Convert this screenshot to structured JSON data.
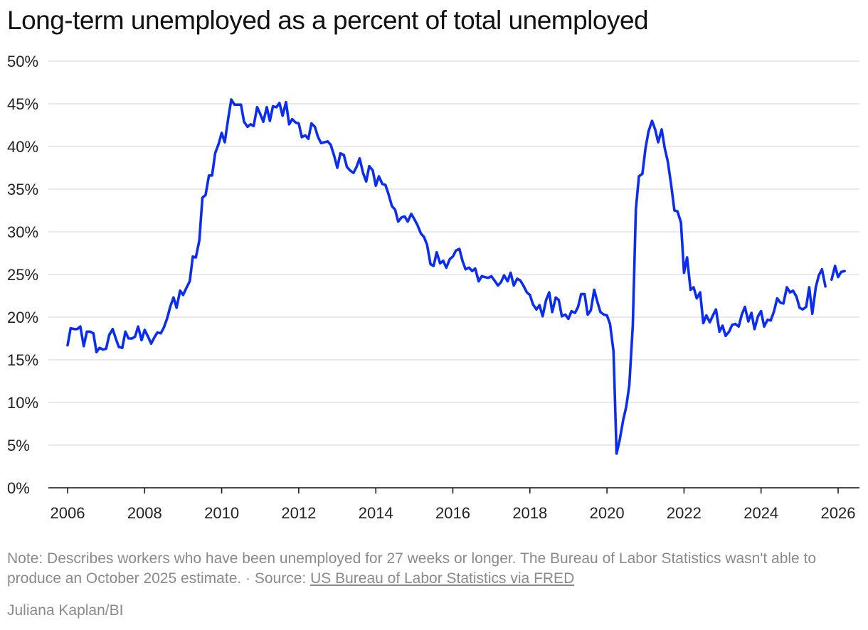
{
  "title": "Long-term unemployed as a percent of total unemployed",
  "note": {
    "text": "Note: Describes workers who have been unemployed for 27 weeks or longer. The Bureau of Labor Statistics wasn't able to produce an October 2025 estimate. · Source: ",
    "source_link": "US Bureau of Labor Statistics via FRED"
  },
  "credit": "Juliana Kaplan/BI",
  "colors": {
    "line": "#0b2df2",
    "grid": "#dddddd",
    "axis": "#111111",
    "muted": "#8a8a8a"
  },
  "chart_data": {
    "type": "line",
    "title": "Long-term unemployed as a percent of total unemployed",
    "xlabel": "",
    "ylabel": "",
    "ylim": [
      0,
      50
    ],
    "xlim": [
      2006,
      2026.3
    ],
    "grid": true,
    "y_ticks": [
      0,
      5,
      10,
      15,
      20,
      25,
      30,
      35,
      40,
      45,
      50
    ],
    "y_tick_labels": [
      "0%",
      "5%",
      "10%",
      "15%",
      "20%",
      "25%",
      "30%",
      "35%",
      "40%",
      "45%",
      "50%"
    ],
    "x_ticks": [
      2006,
      2008,
      2010,
      2012,
      2014,
      2016,
      2018,
      2020,
      2022,
      2024,
      2026
    ],
    "x_tick_labels": [
      "2006",
      "2008",
      "2010",
      "2012",
      "2014",
      "2016",
      "2018",
      "2020",
      "2022",
      "2024",
      "2026"
    ],
    "series": [
      {
        "values": [
          [
            2006.0,
            16.7
          ],
          [
            2006.08,
            18.7
          ],
          [
            2006.17,
            18.6
          ],
          [
            2006.25,
            18.6
          ],
          [
            2006.33,
            18.9
          ],
          [
            2006.42,
            16.6
          ],
          [
            2006.5,
            18.3
          ],
          [
            2006.58,
            18.3
          ],
          [
            2006.67,
            18.1
          ],
          [
            2006.75,
            15.9
          ],
          [
            2006.83,
            16.4
          ],
          [
            2006.92,
            16.2
          ],
          [
            2007.0,
            16.3
          ],
          [
            2007.08,
            17.9
          ],
          [
            2007.17,
            18.6
          ],
          [
            2007.25,
            17.5
          ],
          [
            2007.33,
            16.5
          ],
          [
            2007.42,
            16.4
          ],
          [
            2007.5,
            18.3
          ],
          [
            2007.58,
            17.5
          ],
          [
            2007.67,
            17.5
          ],
          [
            2007.75,
            17.7
          ],
          [
            2007.83,
            18.9
          ],
          [
            2007.92,
            17.3
          ],
          [
            2008.0,
            18.5
          ],
          [
            2008.08,
            17.8
          ],
          [
            2008.17,
            16.9
          ],
          [
            2008.25,
            17.6
          ],
          [
            2008.33,
            18.2
          ],
          [
            2008.42,
            18.1
          ],
          [
            2008.5,
            18.8
          ],
          [
            2008.58,
            19.8
          ],
          [
            2008.67,
            21.3
          ],
          [
            2008.75,
            22.3
          ],
          [
            2008.83,
            21.1
          ],
          [
            2008.92,
            23.1
          ],
          [
            2009.0,
            22.6
          ],
          [
            2009.08,
            23.4
          ],
          [
            2009.17,
            24.2
          ],
          [
            2009.25,
            27.1
          ],
          [
            2009.33,
            27.0
          ],
          [
            2009.42,
            29.0
          ],
          [
            2009.5,
            34.0
          ],
          [
            2009.58,
            34.3
          ],
          [
            2009.67,
            36.6
          ],
          [
            2009.75,
            36.6
          ],
          [
            2009.83,
            39.2
          ],
          [
            2009.92,
            40.3
          ],
          [
            2010.0,
            41.6
          ],
          [
            2010.08,
            40.5
          ],
          [
            2010.17,
            43.3
          ],
          [
            2010.25,
            45.5
          ],
          [
            2010.33,
            44.9
          ],
          [
            2010.42,
            44.9
          ],
          [
            2010.5,
            44.9
          ],
          [
            2010.58,
            42.9
          ],
          [
            2010.67,
            42.3
          ],
          [
            2010.75,
            42.6
          ],
          [
            2010.83,
            42.4
          ],
          [
            2010.92,
            44.6
          ],
          [
            2011.0,
            43.8
          ],
          [
            2011.08,
            42.9
          ],
          [
            2011.17,
            44.6
          ],
          [
            2011.25,
            43.0
          ],
          [
            2011.33,
            44.7
          ],
          [
            2011.42,
            44.6
          ],
          [
            2011.5,
            45.1
          ],
          [
            2011.58,
            43.6
          ],
          [
            2011.67,
            45.2
          ],
          [
            2011.75,
            42.6
          ],
          [
            2011.83,
            43.2
          ],
          [
            2011.92,
            42.8
          ],
          [
            2012.0,
            42.7
          ],
          [
            2012.08,
            41.1
          ],
          [
            2012.17,
            41.3
          ],
          [
            2012.25,
            40.9
          ],
          [
            2012.33,
            42.7
          ],
          [
            2012.42,
            42.3
          ],
          [
            2012.5,
            41.1
          ],
          [
            2012.58,
            40.4
          ],
          [
            2012.67,
            40.5
          ],
          [
            2012.75,
            40.6
          ],
          [
            2012.83,
            40.2
          ],
          [
            2012.92,
            38.9
          ],
          [
            2013.0,
            37.5
          ],
          [
            2013.08,
            39.2
          ],
          [
            2013.17,
            39.0
          ],
          [
            2013.25,
            37.6
          ],
          [
            2013.33,
            37.2
          ],
          [
            2013.42,
            36.9
          ],
          [
            2013.5,
            37.6
          ],
          [
            2013.58,
            38.6
          ],
          [
            2013.67,
            36.9
          ],
          [
            2013.75,
            35.9
          ],
          [
            2013.83,
            37.7
          ],
          [
            2013.92,
            37.2
          ],
          [
            2014.0,
            35.4
          ],
          [
            2014.08,
            36.5
          ],
          [
            2014.17,
            35.6
          ],
          [
            2014.25,
            35.5
          ],
          [
            2014.33,
            34.4
          ],
          [
            2014.42,
            33.0
          ],
          [
            2014.5,
            32.6
          ],
          [
            2014.58,
            31.2
          ],
          [
            2014.67,
            31.7
          ],
          [
            2014.75,
            31.8
          ],
          [
            2014.83,
            31.2
          ],
          [
            2014.92,
            32.1
          ],
          [
            2015.0,
            31.5
          ],
          [
            2015.08,
            30.8
          ],
          [
            2015.17,
            29.8
          ],
          [
            2015.25,
            29.4
          ],
          [
            2015.33,
            28.5
          ],
          [
            2015.42,
            26.2
          ],
          [
            2015.5,
            26.0
          ],
          [
            2015.58,
            27.6
          ],
          [
            2015.67,
            26.3
          ],
          [
            2015.75,
            26.6
          ],
          [
            2015.83,
            25.8
          ],
          [
            2015.92,
            26.8
          ],
          [
            2016.0,
            27.1
          ],
          [
            2016.08,
            27.8
          ],
          [
            2016.17,
            28.0
          ],
          [
            2016.25,
            26.6
          ],
          [
            2016.33,
            25.6
          ],
          [
            2016.42,
            25.8
          ],
          [
            2016.5,
            25.4
          ],
          [
            2016.58,
            25.7
          ],
          [
            2016.67,
            24.2
          ],
          [
            2016.75,
            24.8
          ],
          [
            2016.83,
            24.7
          ],
          [
            2016.92,
            24.6
          ],
          [
            2017.0,
            24.8
          ],
          [
            2017.08,
            24.3
          ],
          [
            2017.17,
            23.7
          ],
          [
            2017.25,
            24.1
          ],
          [
            2017.33,
            24.9
          ],
          [
            2017.42,
            24.2
          ],
          [
            2017.5,
            25.2
          ],
          [
            2017.58,
            23.7
          ],
          [
            2017.67,
            24.5
          ],
          [
            2017.75,
            24.3
          ],
          [
            2017.83,
            23.7
          ],
          [
            2017.92,
            22.9
          ],
          [
            2018.0,
            22.6
          ],
          [
            2018.08,
            21.5
          ],
          [
            2018.17,
            20.9
          ],
          [
            2018.25,
            21.4
          ],
          [
            2018.33,
            20.1
          ],
          [
            2018.42,
            22.0
          ],
          [
            2018.5,
            22.9
          ],
          [
            2018.58,
            20.6
          ],
          [
            2018.67,
            22.3
          ],
          [
            2018.75,
            22.0
          ],
          [
            2018.83,
            20.1
          ],
          [
            2018.92,
            20.3
          ],
          [
            2019.0,
            19.8
          ],
          [
            2019.08,
            20.7
          ],
          [
            2019.17,
            20.5
          ],
          [
            2019.25,
            21.2
          ],
          [
            2019.33,
            22.7
          ],
          [
            2019.42,
            22.7
          ],
          [
            2019.5,
            20.3
          ],
          [
            2019.58,
            20.8
          ],
          [
            2019.67,
            23.2
          ],
          [
            2019.75,
            21.8
          ],
          [
            2019.83,
            20.6
          ],
          [
            2019.92,
            20.3
          ],
          [
            2020.0,
            20.2
          ],
          [
            2020.08,
            19.2
          ],
          [
            2020.17,
            16.0
          ],
          [
            2020.25,
            4.0
          ],
          [
            2020.33,
            5.6
          ],
          [
            2020.42,
            7.9
          ],
          [
            2020.5,
            9.5
          ],
          [
            2020.58,
            12.0
          ],
          [
            2020.67,
            19.0
          ],
          [
            2020.75,
            32.6
          ],
          [
            2020.83,
            36.5
          ],
          [
            2020.92,
            36.8
          ],
          [
            2021.0,
            39.8
          ],
          [
            2021.08,
            41.8
          ],
          [
            2021.17,
            43.0
          ],
          [
            2021.25,
            42.0
          ],
          [
            2021.33,
            40.5
          ],
          [
            2021.42,
            42.0
          ],
          [
            2021.5,
            39.8
          ],
          [
            2021.58,
            38.2
          ],
          [
            2021.67,
            35.4
          ],
          [
            2021.75,
            32.5
          ],
          [
            2021.83,
            32.4
          ],
          [
            2021.92,
            31.1
          ],
          [
            2022.0,
            25.2
          ],
          [
            2022.08,
            27.0
          ],
          [
            2022.17,
            23.2
          ],
          [
            2022.25,
            23.5
          ],
          [
            2022.33,
            22.2
          ],
          [
            2022.42,
            22.9
          ],
          [
            2022.5,
            19.3
          ],
          [
            2022.58,
            20.2
          ],
          [
            2022.67,
            19.4
          ],
          [
            2022.75,
            20.2
          ],
          [
            2022.83,
            20.9
          ],
          [
            2022.92,
            18.3
          ],
          [
            2023.0,
            19.0
          ],
          [
            2023.08,
            17.8
          ],
          [
            2023.17,
            18.3
          ],
          [
            2023.25,
            19.1
          ],
          [
            2023.33,
            19.2
          ],
          [
            2023.42,
            18.9
          ],
          [
            2023.5,
            20.3
          ],
          [
            2023.58,
            21.2
          ],
          [
            2023.67,
            19.5
          ],
          [
            2023.75,
            20.5
          ],
          [
            2023.83,
            18.6
          ],
          [
            2023.92,
            20.1
          ],
          [
            2024.0,
            20.7
          ],
          [
            2024.08,
            18.9
          ],
          [
            2024.17,
            19.7
          ],
          [
            2024.25,
            19.6
          ],
          [
            2024.33,
            20.6
          ],
          [
            2024.42,
            22.2
          ],
          [
            2024.5,
            21.7
          ],
          [
            2024.58,
            21.6
          ],
          [
            2024.67,
            23.5
          ],
          [
            2024.75,
            22.9
          ],
          [
            2024.83,
            23.1
          ],
          [
            2024.92,
            22.4
          ],
          [
            2025.0,
            21.1
          ],
          [
            2025.08,
            20.9
          ],
          [
            2025.17,
            21.2
          ],
          [
            2025.25,
            23.5
          ],
          [
            2025.33,
            20.4
          ],
          [
            2025.42,
            23.5
          ],
          [
            2025.5,
            24.9
          ],
          [
            2025.58,
            25.6
          ],
          [
            2025.67,
            23.6
          ],
          null,
          [
            2025.83,
            24.4
          ],
          [
            2025.92,
            26.0
          ],
          [
            2026.0,
            24.7
          ],
          [
            2026.08,
            25.3
          ],
          [
            2026.17,
            25.4
          ]
        ]
      }
    ]
  }
}
